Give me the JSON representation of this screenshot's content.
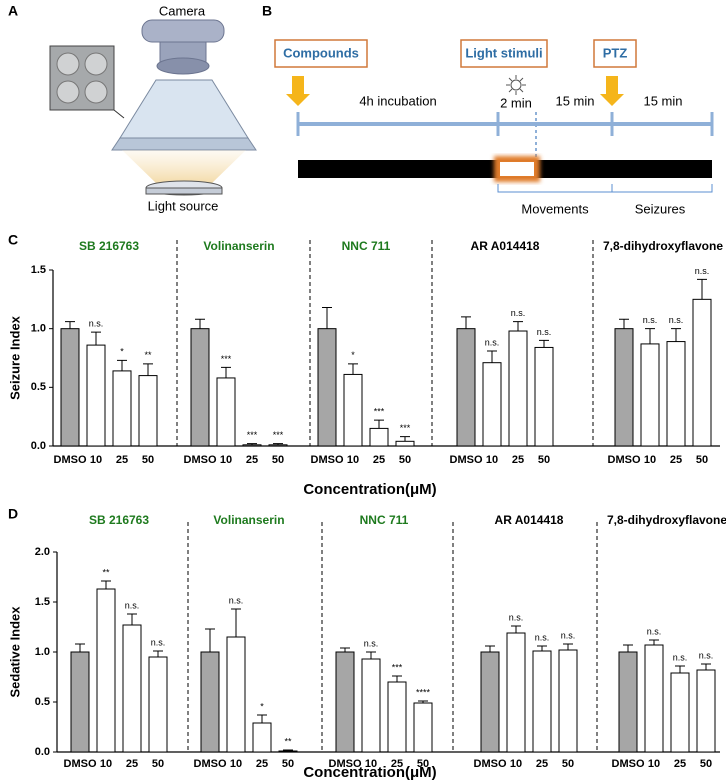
{
  "panel_a": {
    "label": "A",
    "camera": "Camera",
    "light": "Light source"
  },
  "panel_b": {
    "label": "B",
    "compounds": "Compounds",
    "light_stimuli": "Light stimuli",
    "ptz": "PTZ",
    "incubation": "4h incubation",
    "two_min": "2 min",
    "fifteen_a": "15 min",
    "fifteen_b": "15 min",
    "movements": "Movements",
    "seizures": "Seizures"
  },
  "chart_data": [
    {
      "type": "bar",
      "label": "C",
      "ylabel": "Seizure Index",
      "xlabel": "Concentration(μM)",
      "ylim": [
        0,
        1.5
      ],
      "yticks": [
        {
          "value": 0,
          "label": "0.0"
        },
        0.5,
        {
          "value": 1,
          "label": "1.0"
        },
        1.5
      ],
      "bar_colors": [
        "#a6a6a6",
        "#ffffff",
        "#ffffff",
        "#ffffff"
      ],
      "groups": [
        {
          "name": "SB 216763",
          "color": "#1e7a1e",
          "categories": [
            "DMSO",
            "10",
            "25",
            "50"
          ],
          "values": [
            1.0,
            0.86,
            0.64,
            0.6
          ],
          "errors": [
            0.06,
            0.11,
            0.09,
            0.1
          ],
          "annotations": [
            null,
            "n.s.",
            "*",
            "**"
          ]
        },
        {
          "name": "Volinanserin",
          "color": "#1e7a1e",
          "categories": [
            "DMSO",
            "10",
            "25",
            "50"
          ],
          "values": [
            1.0,
            0.58,
            0.01,
            0.01
          ],
          "errors": [
            0.08,
            0.09,
            0.01,
            0.01
          ],
          "annotations": [
            null,
            "***",
            "***",
            "***"
          ]
        },
        {
          "name": "NNC 711",
          "color": "#1e7a1e",
          "categories": [
            "DMSO",
            "10",
            "25",
            "50"
          ],
          "values": [
            1.0,
            0.61,
            0.15,
            0.04
          ],
          "errors": [
            0.18,
            0.09,
            0.07,
            0.04
          ],
          "annotations": [
            null,
            "*",
            "***",
            "***"
          ]
        },
        {
          "name": "AR A014418",
          "color": "#000000",
          "categories": [
            "DMSO",
            "10",
            "25",
            "50"
          ],
          "values": [
            1.0,
            0.71,
            0.98,
            0.84
          ],
          "errors": [
            0.1,
            0.1,
            0.08,
            0.06
          ],
          "annotations": [
            null,
            "n.s.",
            "n.s.",
            "n.s."
          ]
        },
        {
          "name": "7,8-dihydroxyflavone",
          "color": "#000000",
          "categories": [
            "DMSO",
            "10",
            "25",
            "50"
          ],
          "values": [
            1.0,
            0.87,
            0.89,
            1.25
          ],
          "errors": [
            0.08,
            0.13,
            0.11,
            0.17
          ],
          "annotations": [
            null,
            "n.s.",
            "n.s.",
            "n.s."
          ]
        }
      ]
    },
    {
      "type": "bar",
      "label": "D",
      "ylabel": "Sedative Index",
      "xlabel": "Concentration(μM)",
      "ylim": [
        0,
        2
      ],
      "yticks": [
        {
          "value": 0,
          "label": "0.0"
        },
        0.5,
        {
          "value": 1,
          "label": "1.0"
        },
        1.5,
        {
          "value": 2,
          "label": "2.0"
        }
      ],
      "bar_colors": [
        "#a6a6a6",
        "#ffffff",
        "#ffffff",
        "#ffffff"
      ],
      "groups": [
        {
          "name": "SB 216763",
          "color": "#1e7a1e",
          "categories": [
            "DMSO",
            "10",
            "25",
            "50"
          ],
          "values": [
            1.0,
            1.63,
            1.27,
            0.95
          ],
          "errors": [
            0.08,
            0.08,
            0.11,
            0.06
          ],
          "annotations": [
            null,
            "**",
            "n.s.",
            "n.s."
          ]
        },
        {
          "name": "Volinanserin",
          "color": "#1e7a1e",
          "categories": [
            "DMSO",
            "10",
            "25",
            "50"
          ],
          "values": [
            1.0,
            1.15,
            0.29,
            0.01
          ],
          "errors": [
            0.23,
            0.28,
            0.08,
            0.01
          ],
          "annotations": [
            null,
            "n.s.",
            "*",
            "**"
          ]
        },
        {
          "name": "NNC 711",
          "color": "#1e7a1e",
          "categories": [
            "DMSO",
            "10",
            "25",
            "50"
          ],
          "values": [
            1.0,
            0.93,
            0.7,
            0.49
          ],
          "errors": [
            0.04,
            0.07,
            0.06,
            0.02
          ],
          "annotations": [
            null,
            "n.s.",
            "***",
            "****"
          ]
        },
        {
          "name": "AR A014418",
          "color": "#000000",
          "categories": [
            "DMSO",
            "10",
            "25",
            "50"
          ],
          "values": [
            1.0,
            1.19,
            1.01,
            1.02
          ],
          "errors": [
            0.06,
            0.07,
            0.05,
            0.06
          ],
          "annotations": [
            null,
            "n.s.",
            "n.s.",
            "n.s."
          ]
        },
        {
          "name": "7,8-dihydroxyflavone",
          "color": "#000000",
          "categories": [
            "DMSO",
            "10",
            "25",
            "50"
          ],
          "values": [
            1.0,
            1.07,
            0.79,
            0.82
          ],
          "errors": [
            0.07,
            0.05,
            0.07,
            0.06
          ],
          "annotations": [
            null,
            "n.s.",
            "n.s.",
            "n.s."
          ]
        }
      ]
    }
  ]
}
